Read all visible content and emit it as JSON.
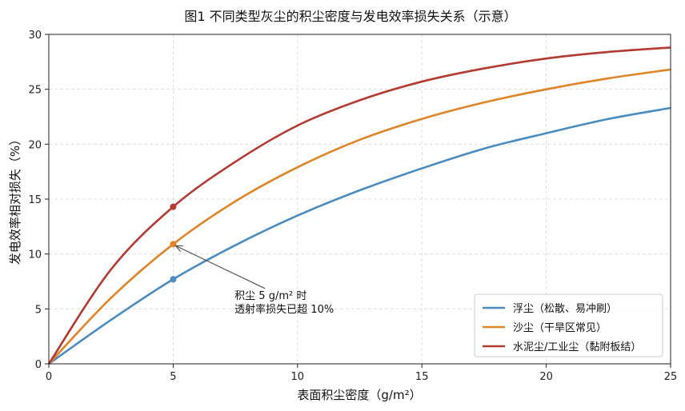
{
  "chart_data": {
    "type": "line",
    "title": "图1  不同类型灰尘的积尘密度与发电效率损失关系（示意）",
    "xlabel": "表面积尘密度（g/m²）",
    "ylabel": "发电效率相对损失（%）",
    "xlim": [
      0,
      25
    ],
    "ylim": [
      0,
      30
    ],
    "xticks": [
      "0",
      "5",
      "10",
      "15",
      "20",
      "25"
    ],
    "yticks": [
      "0",
      "5",
      "10",
      "15",
      "20",
      "25",
      "30"
    ],
    "grid": true,
    "legend_position": "bottom-right",
    "series": [
      {
        "name": "浮尘（松散、易冲刷）",
        "color": "#4a8cbf",
        "x": [
          0,
          2.5,
          5,
          7.5,
          10,
          12.5,
          15,
          17.5,
          20,
          22.5,
          25
        ],
        "y": [
          0,
          4.0,
          7.7,
          10.8,
          13.5,
          15.8,
          17.8,
          19.6,
          21.0,
          22.3,
          23.3
        ]
      },
      {
        "name": "沙尘（干旱区常见）",
        "color": "#df8427",
        "x": [
          0,
          2.5,
          5,
          7.5,
          10,
          12.5,
          15,
          17.5,
          20,
          22.5,
          25
        ],
        "y": [
          0,
          6.0,
          10.9,
          14.8,
          17.9,
          20.4,
          22.3,
          23.8,
          25.0,
          26.0,
          26.8
        ]
      },
      {
        "name": "水泥尘/工业尘（黏附板结）",
        "color": "#b23a30",
        "x": [
          0,
          2.5,
          5,
          7.5,
          10,
          12.5,
          15,
          17.5,
          20,
          22.5,
          25
        ],
        "y": [
          0,
          8.6,
          14.3,
          18.4,
          21.7,
          24.0,
          25.7,
          26.9,
          27.8,
          28.4,
          28.8
        ]
      }
    ],
    "markers": [
      {
        "series": 0,
        "x": 5,
        "y": 7.7
      },
      {
        "series": 1,
        "x": 5,
        "y": 10.9
      },
      {
        "series": 2,
        "x": 5,
        "y": 14.3
      }
    ],
    "annotation": {
      "lines": [
        "积尘 5 g/m² 时",
        "透射率损失已超 10%"
      ],
      "target_x": 5,
      "target_y": 10.9,
      "text_x": 8.5,
      "text_y": 6.2
    }
  }
}
